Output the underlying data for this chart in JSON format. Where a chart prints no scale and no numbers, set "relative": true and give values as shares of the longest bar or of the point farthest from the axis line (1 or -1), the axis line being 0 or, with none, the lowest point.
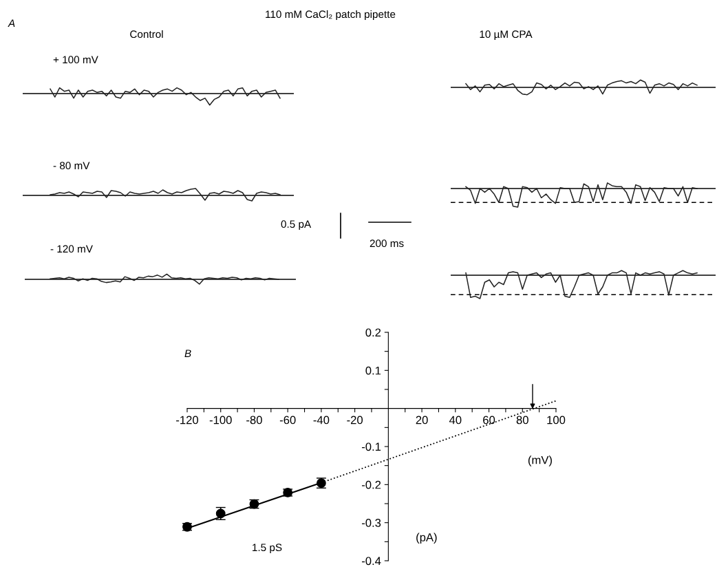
{
  "chart_data": [
    {
      "type": "line",
      "relative": true,
      "title": "+ 100 mV",
      "annotations": [
        "A",
        "110 mM CaCl₂ patch pipette",
        "Control"
      ],
      "categories": [
        null,
        null,
        null,
        null,
        null,
        null,
        null,
        null,
        null,
        null,
        null,
        null,
        null,
        null,
        null,
        null,
        null,
        null,
        null,
        null,
        null,
        null,
        null,
        null,
        null,
        null,
        null,
        null,
        null,
        null,
        null,
        null,
        null,
        null,
        null,
        null,
        null,
        null,
        null,
        null,
        null,
        null,
        null,
        null,
        null,
        null,
        null,
        null,
        null,
        null
      ],
      "series": [
        {
          "color": "#222222",
          "values": [
            0.4,
            -0.3,
            0.5,
            0.2,
            0.3,
            -0.4,
            0.3,
            -0.3,
            0.2,
            0.3,
            0.1,
            0.2,
            -0.2,
            0.3,
            -0.3,
            -0.4,
            0.2,
            0.1,
            0.4,
            -0.1,
            0.3,
            0.2,
            -0.3,
            0.1,
            0.3,
            0.4,
            0.2,
            0.5,
            0.3,
            -0.1,
            0.1,
            -0.3,
            -0.6,
            -0.4,
            -1.0,
            -0.5,
            -0.3,
            0.2,
            0.3,
            -0.2,
            0.4,
            0.5,
            -0.2,
            0.2,
            0.3,
            -0.3,
            0.1,
            0.2,
            0.3,
            -0.4
          ]
        }
      ],
      "ref_lines": [
        {
          "axis": "y",
          "value": 0,
          "color": "#000000",
          "line_style": "solid"
        }
      ]
    },
    {
      "type": "line",
      "relative": true,
      "title": "- 80 mV",
      "annotations": [
        "0.5 pA",
        "200 ms"
      ],
      "categories": [
        null,
        null,
        null,
        null,
        null,
        null,
        null,
        null,
        null,
        null,
        null,
        null,
        null,
        null,
        null,
        null,
        null,
        null,
        null,
        null,
        null,
        null,
        null,
        null,
        null,
        null,
        null,
        null,
        null,
        null,
        null,
        null,
        null,
        null,
        null,
        null,
        null,
        null,
        null,
        null,
        null,
        null,
        null,
        null,
        null,
        null,
        null,
        null,
        null,
        null
      ],
      "series": [
        {
          "color": "#222222",
          "values": [
            0.1,
            0.2,
            0.4,
            0.3,
            0.5,
            0.2,
            -0.2,
            0.5,
            0.4,
            0.3,
            0.6,
            0.5,
            -0.3,
            0.7,
            0.6,
            0.4,
            -0.1,
            0.5,
            0.3,
            0.2,
            0.3,
            0.4,
            0.6,
            0.3,
            0.8,
            0.4,
            0.2,
            0.5,
            0.4,
            0.7,
            0.9,
            1.0,
            0.2,
            -0.7,
            0.3,
            0.4,
            0.2,
            0.6,
            0.5,
            0.3,
            0.7,
            0.4,
            -0.6,
            -0.8,
            0.3,
            0.5,
            0.4,
            0.2,
            0.3,
            0.1
          ]
        }
      ],
      "ref_lines": [
        {
          "axis": "y",
          "value": 0,
          "color": "#000000",
          "line_style": "solid"
        }
      ]
    },
    {
      "type": "line",
      "relative": true,
      "title": "- 120 mV",
      "categories": [
        null,
        null,
        null,
        null,
        null,
        null,
        null,
        null,
        null,
        null,
        null,
        null,
        null,
        null,
        null,
        null,
        null,
        null,
        null,
        null,
        null,
        null,
        null,
        null,
        null,
        null,
        null,
        null,
        null,
        null,
        null,
        null,
        null,
        null,
        null,
        null,
        null,
        null,
        null,
        null,
        null,
        null,
        null,
        null,
        null,
        null,
        null,
        null,
        null,
        null
      ],
      "series": [
        {
          "color": "#222222",
          "values": [
            0.1,
            0.2,
            0.3,
            0.1,
            0.4,
            0.2,
            -0.3,
            0.1,
            -0.2,
            0.2,
            0.1,
            -0.4,
            -0.6,
            -0.5,
            -0.3,
            -0.5,
            0.5,
            0.2,
            -0.2,
            0.4,
            0.3,
            0.6,
            0.5,
            0.8,
            0.4,
            1.0,
            0.3,
            0.2,
            0.3,
            0.1,
            0.2,
            -0.2,
            -0.9,
            0.1,
            0.3,
            0.2,
            0.1,
            0.3,
            0.2,
            0.4,
            0.3,
            -0.1,
            0.2,
            0.1,
            0.3,
            0.2,
            -0.1,
            0.2,
            0.1,
            0.0
          ]
        }
      ],
      "ref_lines": [
        {
          "axis": "y",
          "value": 0,
          "color": "#000000",
          "line_style": "solid"
        }
      ]
    },
    {
      "type": "line",
      "relative": true,
      "annotations": [
        "10 µM CPA"
      ],
      "categories": [
        null,
        null,
        null,
        null,
        null,
        null,
        null,
        null,
        null,
        null,
        null,
        null,
        null,
        null,
        null,
        null,
        null,
        null,
        null,
        null,
        null,
        null,
        null,
        null,
        null,
        null,
        null,
        null,
        null,
        null,
        null,
        null,
        null,
        null,
        null,
        null,
        null,
        null,
        null,
        null,
        null,
        null,
        null,
        null,
        null,
        null,
        null,
        null,
        null,
        null
      ],
      "series": [
        {
          "color": "#222222",
          "values": [
            0.5,
            -0.3,
            0.2,
            -0.6,
            0.3,
            0.4,
            -0.2,
            0.5,
            0.1,
            0.3,
            0.5,
            -0.4,
            -0.9,
            -1.0,
            -0.6,
            0.6,
            0.4,
            -0.2,
            0.3,
            -0.3,
            0.1,
            0.6,
            0.2,
            0.7,
            0.6,
            -0.2,
            0.1,
            -0.3,
            0.2,
            -0.9,
            0.3,
            0.6,
            0.8,
            0.9,
            0.6,
            0.8,
            0.5,
            1.0,
            0.7,
            -0.8,
            0.3,
            0.5,
            0.2,
            0.6,
            0.4,
            -0.3,
            0.5,
            0.2,
            0.6,
            0.3
          ]
        }
      ],
      "ref_lines": [
        {
          "axis": "y",
          "value": 0,
          "color": "#000000",
          "line_style": "solid"
        }
      ]
    },
    {
      "type": "line",
      "relative": true,
      "categories": [
        null,
        null,
        null,
        null,
        null,
        null,
        null,
        null,
        null,
        null,
        null,
        null,
        null,
        null,
        null,
        null,
        null,
        null,
        null,
        null,
        null,
        null,
        null,
        null,
        null,
        null,
        null,
        null,
        null,
        null,
        null,
        null,
        null,
        null,
        null,
        null,
        null,
        null,
        null,
        null,
        null,
        null,
        null,
        null,
        null,
        null,
        null,
        null,
        null,
        null
      ],
      "series": [
        {
          "color": "#222222",
          "values": [
            0.1,
            -0.1,
            -0.8,
            0.0,
            -0.2,
            0.0,
            -0.3,
            -0.75,
            0.1,
            0.0,
            -0.95,
            -1.0,
            0.1,
            0.05,
            -0.2,
            0.0,
            -0.5,
            -0.3,
            -0.6,
            -0.8,
            0.05,
            0.0,
            0.0,
            -0.75,
            -0.7,
            0.25,
            0.1,
            -0.7,
            0.2,
            -0.6,
            0.3,
            0.15,
            0.1,
            0.1,
            -0.2,
            -0.8,
            0.2,
            0.1,
            -0.65,
            0.05,
            -0.2,
            -0.7,
            0.05,
            0.0,
            0.0,
            -0.4,
            0.1,
            -0.75,
            0.05,
            0.0
          ]
        }
      ],
      "ref_lines": [
        {
          "axis": "y",
          "value": 0,
          "color": "#000000",
          "line_style": "solid"
        },
        {
          "axis": "y",
          "value": -0.75,
          "color": "#000000",
          "line_style": "dashed"
        }
      ]
    },
    {
      "type": "line",
      "relative": true,
      "categories": [
        null,
        null,
        null,
        null,
        null,
        null,
        null,
        null,
        null,
        null,
        null,
        null,
        null,
        null,
        null,
        null,
        null,
        null,
        null,
        null,
        null,
        null,
        null,
        null,
        null,
        null,
        null,
        null,
        null,
        null,
        null,
        null,
        null,
        null,
        null,
        null,
        null,
        null,
        null,
        null,
        null,
        null,
        null,
        null,
        null,
        null,
        null,
        null,
        null,
        null
      ],
      "series": [
        {
          "color": "#222222",
          "values": [
            0.1,
            -0.95,
            -0.9,
            -1.0,
            -0.3,
            -0.2,
            -0.5,
            -0.3,
            -0.4,
            0.1,
            0.15,
            0.1,
            -0.6,
            0.0,
            0.05,
            0.1,
            -0.1,
            0.05,
            0.1,
            -0.3,
            0.0,
            -0.9,
            -0.95,
            -0.5,
            0.0,
            0.05,
            0.1,
            0.0,
            -0.8,
            -0.5,
            0.0,
            0.1,
            0.1,
            0.2,
            0.1,
            -0.8,
            0.1,
            0.0,
            0.1,
            0.05,
            0.1,
            0.15,
            0.05,
            -0.85,
            0.0,
            0.1,
            0.2,
            0.1,
            0.05,
            0.1
          ]
        }
      ],
      "ref_lines": [
        {
          "axis": "y",
          "value": 0,
          "color": "#000000",
          "line_style": "solid"
        },
        {
          "axis": "y",
          "value": -0.83,
          "color": "#000000",
          "line_style": "dashed"
        }
      ]
    },
    {
      "type": "scatter",
      "x": [
        -120,
        -100,
        -80,
        -60,
        -40
      ],
      "xlabel": "(mV)",
      "ylabel": "(pA)",
      "series": [
        {
          "type": "scatter",
          "marker": "circle",
          "color": "#000000",
          "values": [
            -0.311,
            -0.276,
            -0.251,
            -0.221,
            -0.196
          ],
          "errors": [
            0.009,
            0.016,
            0.011,
            0.009,
            0.013
          ]
        },
        {
          "type": "line",
          "color": "#000000",
          "x": [
            -120,
            -40
          ],
          "values": [
            -0.315,
            -0.195
          ],
          "line_style": "solid"
        },
        {
          "type": "line",
          "color": "#000000",
          "x": [
            -40,
            100
          ],
          "values": [
            -0.195,
            0.02
          ],
          "line_style": "dotted"
        }
      ],
      "xlim": [
        -120,
        100
      ],
      "ylim": [
        -0.4,
        0.2
      ],
      "xticks": [
        -120,
        {
          "value": -110,
          "label": null
        },
        -100,
        {
          "value": -90,
          "label": null
        },
        -80,
        {
          "value": -70,
          "label": null
        },
        -60,
        {
          "value": -50,
          "label": null
        },
        -40,
        {
          "value": -30,
          "label": null
        },
        -20,
        {
          "value": -10,
          "label": null
        },
        {
          "value": 10,
          "label": null
        },
        20,
        {
          "value": 30,
          "label": null
        },
        40,
        {
          "value": 50,
          "label": null
        },
        60,
        {
          "value": 70,
          "label": null
        },
        80,
        {
          "value": 90,
          "label": null
        },
        100
      ],
      "yticks": [
        0.2,
        {
          "value": 0.15,
          "label": null
        },
        0.1,
        {
          "value": 0.05,
          "label": null
        },
        {
          "value": -0.05,
          "label": null
        },
        -0.1,
        {
          "value": -0.15,
          "label": null
        },
        -0.2,
        {
          "value": -0.25,
          "label": null
        },
        -0.3,
        {
          "value": -0.35,
          "label": null
        },
        -0.4
      ],
      "annotations": [
        "B",
        "1.5 pS"
      ]
    }
  ]
}
